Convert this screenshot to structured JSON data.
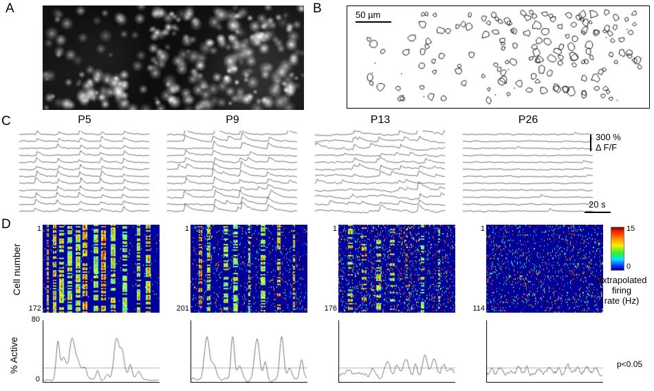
{
  "figure": {
    "panel_a": {
      "label": "A"
    },
    "panel_b": {
      "label": "B",
      "scale_bar": "50 µm"
    },
    "panel_c": {
      "label": "C",
      "ages": [
        "P5",
        "P9",
        "P13",
        "P26"
      ],
      "amp_scale_value": "300 %",
      "amp_scale_unit": "Δ F/F",
      "time_scale": "20 s"
    },
    "panel_d": {
      "label": "D",
      "y_axis_label": "Cell number",
      "first_cell_label": "1",
      "last_cell_labels": [
        "172",
        "201",
        "176",
        "114"
      ],
      "colorbar": {
        "max": "15",
        "min": "0",
        "label_lines": [
          "Extrapolated",
          "firing",
          "rate (Hz)"
        ]
      },
      "active": {
        "y_axis_label": "% Active",
        "y_max": "80",
        "y_min": "0",
        "significance": "p<0.05"
      }
    },
    "render_params": {
      "panels": [
        {
          "age": "P5",
          "trace": {
            "events": [
              0.13,
              0.3,
              0.47,
              0.63,
              0.8
            ],
            "part": 0.92,
            "amp": 1.0,
            "tau": 5,
            "extra": 0,
            "noise": 1.0,
            "slow": 0
          },
          "heat": {
            "events": [
              0.04,
              0.1,
              0.16,
              0.23,
              0.3,
              0.36,
              0.45,
              0.52,
              0.6,
              0.7,
              0.82,
              0.9
            ],
            "part": 0.68,
            "speckle": 0.02
          },
          "active": {
            "base": 2,
            "noise": 2,
            "peaks": [
              [
                0.13,
                50
              ],
              [
                0.18,
                32
              ],
              [
                0.25,
                55
              ],
              [
                0.3,
                25
              ],
              [
                0.36,
                15
              ],
              [
                0.47,
                12
              ],
              [
                0.55,
                8
              ],
              [
                0.63,
                55
              ],
              [
                0.68,
                40
              ],
              [
                0.75,
                20
              ],
              [
                0.82,
                12
              ]
            ]
          }
        },
        {
          "age": "P9",
          "trace": {
            "events": [
              0.14,
              0.36,
              0.57,
              0.78
            ],
            "part": 0.85,
            "amp": 1.4,
            "tau": 9,
            "extra": 1,
            "noise": 1.1,
            "slow": 0
          },
          "heat": {
            "events": [
              0.08,
              0.15,
              0.3,
              0.38,
              0.5,
              0.62,
              0.75,
              0.88
            ],
            "part": 0.55,
            "speckle": 0.07
          },
          "active": {
            "base": 3,
            "noise": 3,
            "peaks": [
              [
                0.14,
                58
              ],
              [
                0.2,
                18
              ],
              [
                0.36,
                60
              ],
              [
                0.42,
                20
              ],
              [
                0.57,
                55
              ],
              [
                0.64,
                25
              ],
              [
                0.78,
                58
              ],
              [
                0.85,
                15
              ],
              [
                0.95,
                25
              ]
            ]
          }
        },
        {
          "age": "P13",
          "trace": {
            "events": [
              0.3,
              0.5,
              0.65,
              0.8
            ],
            "part": 0.45,
            "amp": 1.0,
            "tau": 8,
            "extra": 3,
            "noise": 1.5,
            "slow": 1
          },
          "heat": {
            "events": [
              0.1,
              0.22,
              0.34,
              0.46,
              0.58,
              0.72,
              0.86
            ],
            "part": 0.3,
            "speckle": 0.12
          },
          "active": {
            "base": 6,
            "noise": 4,
            "peaks": [
              [
                0.08,
                10
              ],
              [
                0.18,
                8
              ],
              [
                0.3,
                12
              ],
              [
                0.42,
                22
              ],
              [
                0.5,
                18
              ],
              [
                0.58,
                25
              ],
              [
                0.66,
                20
              ],
              [
                0.74,
                30
              ],
              [
                0.82,
                24
              ],
              [
                0.9,
                18
              ],
              [
                0.96,
                12
              ]
            ]
          }
        },
        {
          "age": "P26",
          "trace": {
            "events": [],
            "part": 0,
            "amp": 0.7,
            "tau": 6,
            "extra": 0.7,
            "noise": 1.0,
            "slow": 0
          },
          "heat": {
            "events": [],
            "part": 0,
            "speckle": 0.1
          },
          "active": {
            "base": 10,
            "noise": 5,
            "peaks": [
              [
                0.05,
                6
              ],
              [
                0.12,
                9
              ],
              [
                0.2,
                5
              ],
              [
                0.28,
                8
              ],
              [
                0.35,
                10
              ],
              [
                0.45,
                7
              ],
              [
                0.55,
                9
              ],
              [
                0.62,
                6
              ],
              [
                0.7,
                10
              ],
              [
                0.78,
                8
              ],
              [
                0.86,
                9
              ],
              [
                0.94,
                7
              ]
            ]
          }
        }
      ]
    }
  }
}
